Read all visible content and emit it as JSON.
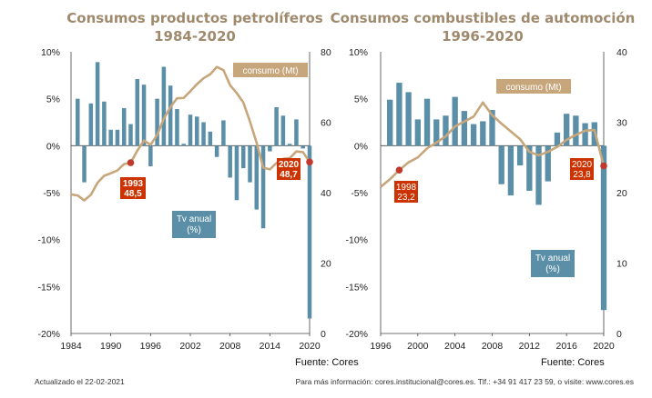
{
  "colors": {
    "bar": "#5b8fa8",
    "line": "#c8a67c",
    "title": "#a08a6e",
    "label_red": "#cc3300",
    "dot": "#c0392b",
    "axis": "#444444"
  },
  "footer": {
    "left": "Actualizado el 22-02-2021",
    "right": "Para más información: cores.institucional@cores.es. Tlf.: +34  91 417 23 59, o visite: www.cores.es"
  },
  "chart_data": [
    {
      "type": "bar+line",
      "title": "Consumos productos petrolíferos",
      "subtitle": "1984-2020",
      "source": "Fuente: Cores",
      "x_range": [
        1984,
        2020
      ],
      "x_ticks": [
        "1984",
        "1990",
        "1996",
        "2002",
        "2008",
        "2014",
        "2020"
      ],
      "y_left": {
        "range": [
          -20,
          10
        ],
        "ticks": [
          "10%",
          "5%",
          "0%",
          "-5%",
          "-10%",
          "-15%",
          "-20%"
        ]
      },
      "y_right": {
        "range": [
          0,
          80
        ],
        "ticks": [
          "80",
          "60",
          "40",
          "20",
          "0"
        ]
      },
      "series": [
        {
          "name": "Tv anual\n(%)",
          "kind": "bar",
          "axis": "left",
          "x": [
            1985,
            1986,
            1987,
            1988,
            1989,
            1990,
            1991,
            1992,
            1993,
            1994,
            1995,
            1996,
            1997,
            1998,
            1999,
            2000,
            2001,
            2002,
            2003,
            2004,
            2005,
            2006,
            2007,
            2008,
            2009,
            2010,
            2011,
            2012,
            2013,
            2014,
            2015,
            2016,
            2017,
            2018,
            2019,
            2020
          ],
          "values": [
            5.0,
            -3.9,
            4.5,
            8.9,
            4.7,
            1.7,
            1.7,
            4.0,
            2.3,
            7.1,
            6.5,
            -2.2,
            5.0,
            8.4,
            6.4,
            3.9,
            0.2,
            3.3,
            3.1,
            2.5,
            1.5,
            -1.2,
            2.7,
            -3.4,
            -5.8,
            -2.4,
            -3.9,
            -6.8,
            -8.8,
            -0.6,
            4.1,
            3.2,
            0.2,
            2.8,
            -0.3,
            -18.4
          ]
        },
        {
          "name": "consumo (Mt)",
          "kind": "line",
          "axis": "right",
          "x": [
            1984,
            1985,
            1986,
            1987,
            1988,
            1989,
            1990,
            1991,
            1992,
            1993,
            1994,
            1995,
            1996,
            1997,
            1998,
            1999,
            2000,
            2001,
            2002,
            2003,
            2004,
            2005,
            2006,
            2007,
            2008,
            2009,
            2010,
            2011,
            2012,
            2013,
            2014,
            2015,
            2016,
            2017,
            2018,
            2019,
            2020
          ],
          "values": [
            39.5,
            39.2,
            37.8,
            39.4,
            42.8,
            44.8,
            45.5,
            46.3,
            48.1,
            48.5,
            51.9,
            54.8,
            53.6,
            56.4,
            61.0,
            64.3,
            66.8,
            66.9,
            68.8,
            70.8,
            72.5,
            73.6,
            75.7,
            74.8,
            70.5,
            68.3,
            65.6,
            60.2,
            54.2,
            47.1,
            46.6,
            48.4,
            49.6,
            49.8,
            51.7,
            51.5,
            48.7
          ]
        }
      ],
      "annotations": [
        {
          "year": "1993",
          "value": "48,5"
        },
        {
          "year": "2020",
          "value": "48,7"
        }
      ]
    },
    {
      "type": "bar+line",
      "title": "Consumos combustibles de automoción",
      "subtitle": "1996-2020",
      "source": "Fuente: Cores",
      "x_range": [
        1996,
        2020
      ],
      "x_ticks": [
        "1996",
        "2000",
        "2004",
        "2008",
        "2012",
        "2016",
        "2020"
      ],
      "y_left": {
        "range": [
          -20,
          10
        ],
        "ticks": [
          "10%",
          "5%",
          "0%",
          "-5%",
          "-10%",
          "-15%",
          "-20%"
        ]
      },
      "y_right": {
        "range": [
          0,
          40
        ],
        "ticks": [
          "40",
          "30",
          "20",
          "10",
          "0"
        ]
      },
      "series": [
        {
          "name": "Tv anual\n(%)",
          "kind": "bar",
          "axis": "left",
          "x": [
            1997,
            1998,
            1999,
            2000,
            2001,
            2002,
            2003,
            2004,
            2005,
            2006,
            2007,
            2008,
            2009,
            2010,
            2011,
            2012,
            2013,
            2014,
            2015,
            2016,
            2017,
            2018,
            2019,
            2020
          ],
          "values": [
            4.9,
            6.7,
            5.7,
            2.8,
            5.0,
            2.8,
            3.2,
            5.2,
            3.7,
            2.3,
            2.6,
            3.8,
            -4.1,
            -5.3,
            -2.1,
            -4.8,
            -6.3,
            -3.8,
            1.4,
            3.4,
            3.2,
            2.4,
            2.5,
            -17.5
          ]
        },
        {
          "name": "consumo (Mt)",
          "kind": "line",
          "axis": "right",
          "x": [
            1996,
            1997,
            1998,
            1999,
            2000,
            2001,
            2002,
            2003,
            2004,
            2005,
            2006,
            2007,
            2008,
            2009,
            2010,
            2011,
            2012,
            2013,
            2014,
            2015,
            2016,
            2017,
            2018,
            2019,
            2020
          ],
          "values": [
            20.8,
            21.9,
            23.2,
            24.3,
            25.0,
            26.3,
            27.1,
            28.0,
            29.4,
            30.1,
            30.8,
            32.8,
            31.0,
            29.8,
            28.7,
            27.6,
            25.8,
            25.3,
            25.8,
            26.5,
            27.5,
            28.2,
            28.8,
            28.9,
            23.8
          ]
        }
      ],
      "annotations": [
        {
          "year": "1998",
          "value": "23,2"
        },
        {
          "year": "2020",
          "value": "23,8"
        }
      ]
    }
  ]
}
